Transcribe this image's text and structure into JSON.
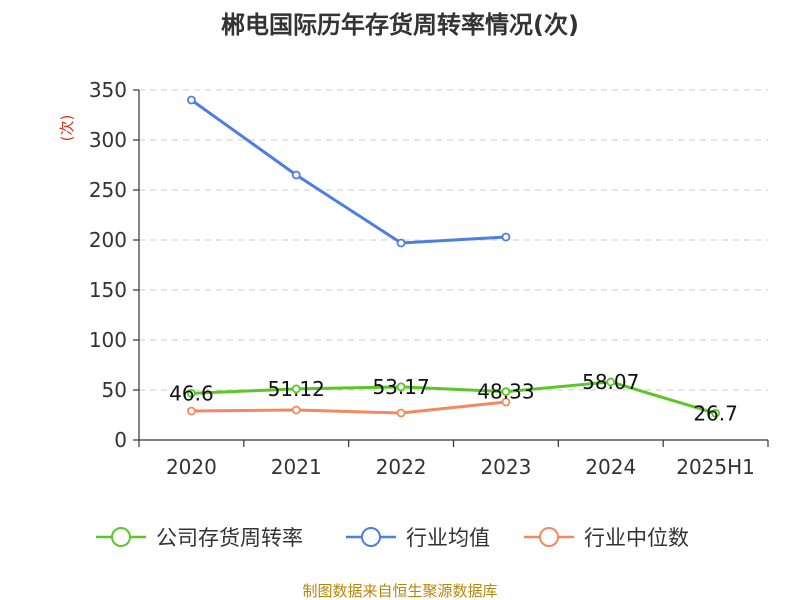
{
  "chart_data": {
    "type": "line",
    "title": "郴电国际历年存货周转率情况(次)",
    "ylabel": "(次)",
    "ylim": [
      0,
      350
    ],
    "yticks": [
      0,
      50,
      100,
      150,
      200,
      250,
      300,
      350
    ],
    "categories": [
      "2020",
      "2021",
      "2022",
      "2023",
      "2024",
      "2025H1"
    ],
    "grid": true,
    "legend_position": "bottom",
    "series": [
      {
        "name": "公司存货周转率",
        "color": "#5ac727",
        "values": [
          46.6,
          51.12,
          53.17,
          48.33,
          58.07,
          26.7
        ],
        "labels": [
          "46.6",
          "51.12",
          "53.17",
          "48.33",
          "58.07",
          "26.7"
        ]
      },
      {
        "name": "行业均值",
        "color": "#4d7fe0",
        "values": [
          340,
          265,
          197,
          203,
          null,
          null
        ]
      },
      {
        "name": "行业中位数",
        "color": "#f4895f",
        "values": [
          29,
          30,
          27,
          38,
          null,
          null
        ]
      }
    ]
  },
  "source": "制图数据来自恒生聚源数据库"
}
